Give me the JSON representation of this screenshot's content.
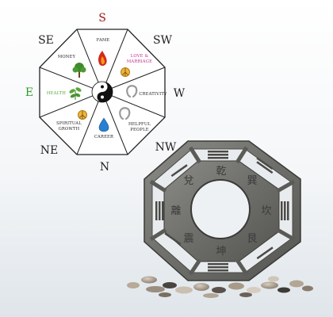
{
  "bagua_map": {
    "directions": {
      "S": "S",
      "SW": "SW",
      "W": "W",
      "NW": "NW",
      "N": "N",
      "NE": "NE",
      "E": "E",
      "SE": "SE"
    },
    "sectors": {
      "fame": "FAME",
      "love_line1": "LOVE &",
      "love_line2": "MARRIAGE",
      "creativity": "CREATIVITY",
      "helpful_line1": "HELPFUL",
      "helpful_line2": "PEOPLE",
      "career": "CAREER",
      "spiritual_line1": "SPIRITUAL",
      "spiritual_line2": "GROWTH",
      "health": "HEALTH",
      "money": "MONEY"
    },
    "icons": {
      "fame": "fire-icon",
      "love": "peace-sign-icon",
      "creativity": "horseshoe-icon",
      "helpful": "horseshoe-icon",
      "career": "water-drop-icon",
      "spiritual": "peace-sign-icon",
      "health": "plant-icon",
      "money": "tree-icon",
      "center": "yin-yang-icon"
    },
    "colors": {
      "S": "#a01818",
      "E": "#2e9a2e",
      "love_text": "#c02a8a",
      "health_text": "#55a53a",
      "default_text": "#222222"
    }
  },
  "metal_bagua": {
    "characters": [
      "乾",
      "巽",
      "坎",
      "艮",
      "坤",
      "震",
      "離",
      "兌"
    ]
  }
}
